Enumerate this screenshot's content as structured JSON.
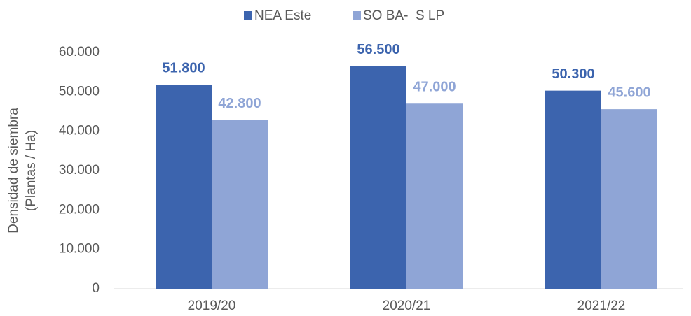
{
  "chart_data": {
    "type": "bar",
    "categories": [
      "2019/20",
      "2020/21",
      "2021/22"
    ],
    "series": [
      {
        "name": "NEA Este",
        "color": "#3c64ae",
        "values": [
          51800,
          56500,
          50300
        ],
        "value_labels": [
          "51.800",
          "56.500",
          "50.300"
        ]
      },
      {
        "name": "SO BA-  S LP",
        "color": "#8fa5d6",
        "values": [
          42800,
          47000,
          45600
        ],
        "value_labels": [
          "42.800",
          "47.000",
          "45.600"
        ]
      }
    ],
    "ylabel": [
      "Densidad de siembra",
      "(Plantas / Ha)"
    ],
    "ylim": [
      0,
      60000
    ],
    "yticks": [
      0,
      {
        "value": 10000,
        "label": "10.000"
      },
      {
        "value": 20000,
        "label": "20.000"
      },
      {
        "value": 30000,
        "label": "30.000"
      },
      {
        "value": 40000,
        "label": "40.000"
      },
      {
        "value": 50000,
        "label": "50.000"
      },
      {
        "value": 60000,
        "label": "60.000"
      }
    ],
    "grid": false,
    "legend": "top"
  }
}
